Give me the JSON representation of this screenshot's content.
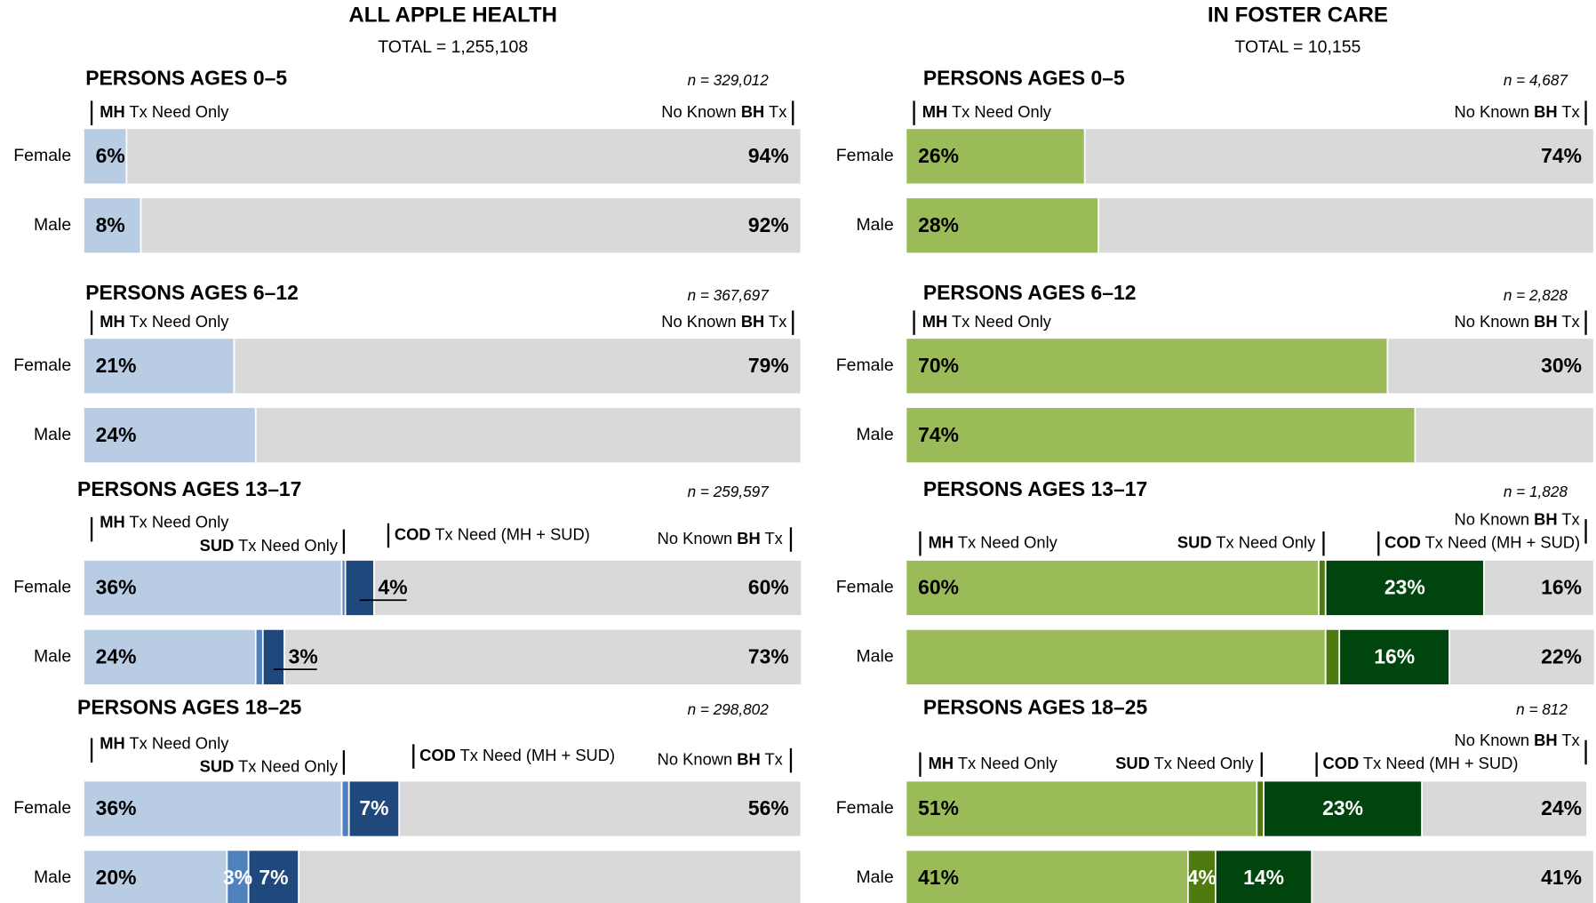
{
  "chart_data": [
    {
      "type": "bar",
      "title": "ALL APPLE HEALTH",
      "subtitle": "TOTAL =  1,255,108",
      "xlim": [
        0,
        100
      ],
      "groups": [
        {
          "title": "PERSONS AGES 0–5",
          "n": "n =  329,012",
          "categories": [
            "Female",
            "Male"
          ],
          "series": [
            {
              "name": [
                {
                  "text": "MH",
                  "bold": true
                },
                {
                  "text": " Tx Need Only"
                }
              ],
              "color": "#b8cce4",
              "values": [
                6,
                8
              ],
              "value_labels": [
                "6%",
                "8%"
              ]
            },
            {
              "name": [
                {
                  "text": "No Known "
                },
                {
                  "text": "BH",
                  "bold": true
                },
                {
                  "text": " Tx"
                }
              ],
              "color": "#d9d9d9",
              "values": [
                94,
                92
              ],
              "value_labels": [
                "94%",
                "92%"
              ]
            }
          ]
        },
        {
          "title": "PERSONS AGES 6–12",
          "n": "n =  367,697",
          "categories": [
            "Female",
            "Male"
          ],
          "series": [
            {
              "name": [
                {
                  "text": "MH",
                  "bold": true
                },
                {
                  "text": " Tx Need Only"
                }
              ],
              "color": "#b8cce4",
              "values": [
                21,
                24
              ],
              "value_labels": [
                "21%",
                "24%"
              ]
            },
            {
              "name": [
                {
                  "text": "No Known "
                },
                {
                  "text": "BH",
                  "bold": true
                },
                {
                  "text": " Tx"
                }
              ],
              "color": "#d9d9d9",
              "values": [
                79,
                76
              ],
              "value_labels": [
                "79%",
                null
              ]
            }
          ]
        },
        {
          "title": "PERSONS AGES 13–17",
          "n": "n =  259,597",
          "categories": [
            "Female",
            "Male"
          ],
          "series": [
            {
              "name": [
                {
                  "text": "MH",
                  "bold": true
                },
                {
                  "text": " Tx Need Only"
                }
              ],
              "color": "#b8cce4",
              "values": [
                36,
                24
              ],
              "value_labels": [
                "36%",
                "24%"
              ]
            },
            {
              "name": [
                {
                  "text": "SUD",
                  "bold": true
                },
                {
                  "text": " Tx Need Only"
                }
              ],
              "color": "#4f81bd",
              "values": [
                0.5,
                1
              ],
              "value_labels": [
                null,
                null
              ]
            },
            {
              "name": [
                {
                  "text": "COD",
                  "bold": true
                },
                {
                  "text": " Tx Need (MH + SUD)"
                }
              ],
              "color": "#1f497d",
              "values": [
                4,
                3
              ],
              "value_labels": [
                "4%",
                "3%"
              ]
            },
            {
              "name": [
                {
                  "text": "No Known "
                },
                {
                  "text": "BH",
                  "bold": true
                },
                {
                  "text": " Tx"
                }
              ],
              "color": "#d9d9d9",
              "values": [
                60,
                73
              ],
              "value_labels": [
                "60%",
                "73%"
              ]
            }
          ]
        },
        {
          "title": "PERSONS AGES 18–25",
          "n": "n =  298,802",
          "categories": [
            "Female",
            "Male"
          ],
          "series": [
            {
              "name": [
                {
                  "text": "MH",
                  "bold": true
                },
                {
                  "text": " Tx Need Only"
                }
              ],
              "color": "#b8cce4",
              "values": [
                36,
                20
              ],
              "value_labels": [
                "36%",
                "20%"
              ]
            },
            {
              "name": [
                {
                  "text": "SUD",
                  "bold": true
                },
                {
                  "text": " Tx Need Only"
                }
              ],
              "color": "#4f81bd",
              "values": [
                1,
                3
              ],
              "value_labels": [
                null,
                "3%"
              ]
            },
            {
              "name": [
                {
                  "text": "COD",
                  "bold": true
                },
                {
                  "text": " Tx Need (MH + SUD)"
                }
              ],
              "color": "#1f497d",
              "values": [
                7,
                7
              ],
              "value_labels": [
                "7%",
                "7%"
              ]
            },
            {
              "name": [
                {
                  "text": "No Known "
                },
                {
                  "text": "BH",
                  "bold": true
                },
                {
                  "text": " Tx"
                }
              ],
              "color": "#d9d9d9",
              "values": [
                56,
                70
              ],
              "value_labels": [
                "56%",
                null
              ]
            }
          ]
        }
      ]
    },
    {
      "type": "bar",
      "title": "IN FOSTER CARE",
      "subtitle": "TOTAL =  10,155",
      "xlim": [
        0,
        100
      ],
      "groups": [
        {
          "title": "PERSONS AGES 0–5",
          "n": "n =  4,687",
          "categories": [
            "Female",
            "Male"
          ],
          "series": [
            {
              "name": [
                {
                  "text": "MH",
                  "bold": true
                },
                {
                  "text": " Tx Need Only"
                }
              ],
              "color": "#9bbb59",
              "values": [
                26,
                28
              ],
              "value_labels": [
                "26%",
                "28%"
              ]
            },
            {
              "name": [
                {
                  "text": "No Known "
                },
                {
                  "text": "BH",
                  "bold": true
                },
                {
                  "text": " Tx"
                }
              ],
              "color": "#d9d9d9",
              "values": [
                74,
                72
              ],
              "value_labels": [
                "74%",
                null
              ]
            }
          ]
        },
        {
          "title": "PERSONS AGES 6–12",
          "n": "n =  2,828",
          "categories": [
            "Female",
            "Male"
          ],
          "series": [
            {
              "name": [
                {
                  "text": "MH",
                  "bold": true
                },
                {
                  "text": " Tx Need Only"
                }
              ],
              "color": "#9bbb59",
              "values": [
                70,
                74
              ],
              "value_labels": [
                "70%",
                "74%"
              ]
            },
            {
              "name": [
                {
                  "text": "No Known "
                },
                {
                  "text": "BH",
                  "bold": true
                },
                {
                  "text": " Tx"
                }
              ],
              "color": "#d9d9d9",
              "values": [
                30,
                26
              ],
              "value_labels": [
                "30%",
                null
              ]
            }
          ]
        },
        {
          "title": "PERSONS AGES 13–17",
          "n": "n =  1,828",
          "categories": [
            "Female",
            "Male"
          ],
          "series": [
            {
              "name": [
                {
                  "text": "MH",
                  "bold": true
                },
                {
                  "text": " Tx Need Only"
                }
              ],
              "color": "#9bbb59",
              "values": [
                60,
                61
              ],
              "value_labels": [
                "60%",
                null
              ]
            },
            {
              "name": [
                {
                  "text": "SUD",
                  "bold": true
                },
                {
                  "text": " Tx Need Only"
                }
              ],
              "color": "#4f7a10",
              "values": [
                1,
                2
              ],
              "value_labels": [
                null,
                null
              ]
            },
            {
              "name": [
                {
                  "text": "COD",
                  "bold": true
                },
                {
                  "text": " Tx Need (MH + SUD)"
                }
              ],
              "color": "#00440e",
              "values": [
                23,
                16
              ],
              "value_labels": [
                "23%",
                "16%"
              ]
            },
            {
              "name": [
                {
                  "text": "No Known "
                },
                {
                  "text": "BH",
                  "bold": true
                },
                {
                  "text": " Tx"
                }
              ],
              "color": "#d9d9d9",
              "values": [
                16,
                22
              ],
              "value_labels": [
                "16%",
                "22%"
              ]
            }
          ]
        },
        {
          "title": "PERSONS AGES 18–25",
          "n": "n =  812",
          "categories": [
            "Female",
            "Male"
          ],
          "series": [
            {
              "name": [
                {
                  "text": "MH",
                  "bold": true
                },
                {
                  "text": " Tx Need Only"
                }
              ],
              "color": "#9bbb59",
              "values": [
                51,
                41
              ],
              "value_labels": [
                "51%",
                "41%"
              ]
            },
            {
              "name": [
                {
                  "text": "SUD",
                  "bold": true
                },
                {
                  "text": " Tx Need Only"
                }
              ],
              "color": "#4f7a10",
              "values": [
                1,
                4
              ],
              "value_labels": [
                null,
                "4%"
              ]
            },
            {
              "name": [
                {
                  "text": "COD",
                  "bold": true
                },
                {
                  "text": " Tx Need (MH + SUD)"
                }
              ],
              "color": "#00440e",
              "values": [
                23,
                14
              ],
              "value_labels": [
                "23%",
                "14%"
              ]
            },
            {
              "name": [
                {
                  "text": "No Known "
                },
                {
                  "text": "BH",
                  "bold": true
                },
                {
                  "text": " Tx"
                }
              ],
              "color": "#d9d9d9",
              "values": [
                24,
                41
              ],
              "value_labels": [
                "24%",
                "41%"
              ]
            }
          ]
        }
      ]
    }
  ]
}
